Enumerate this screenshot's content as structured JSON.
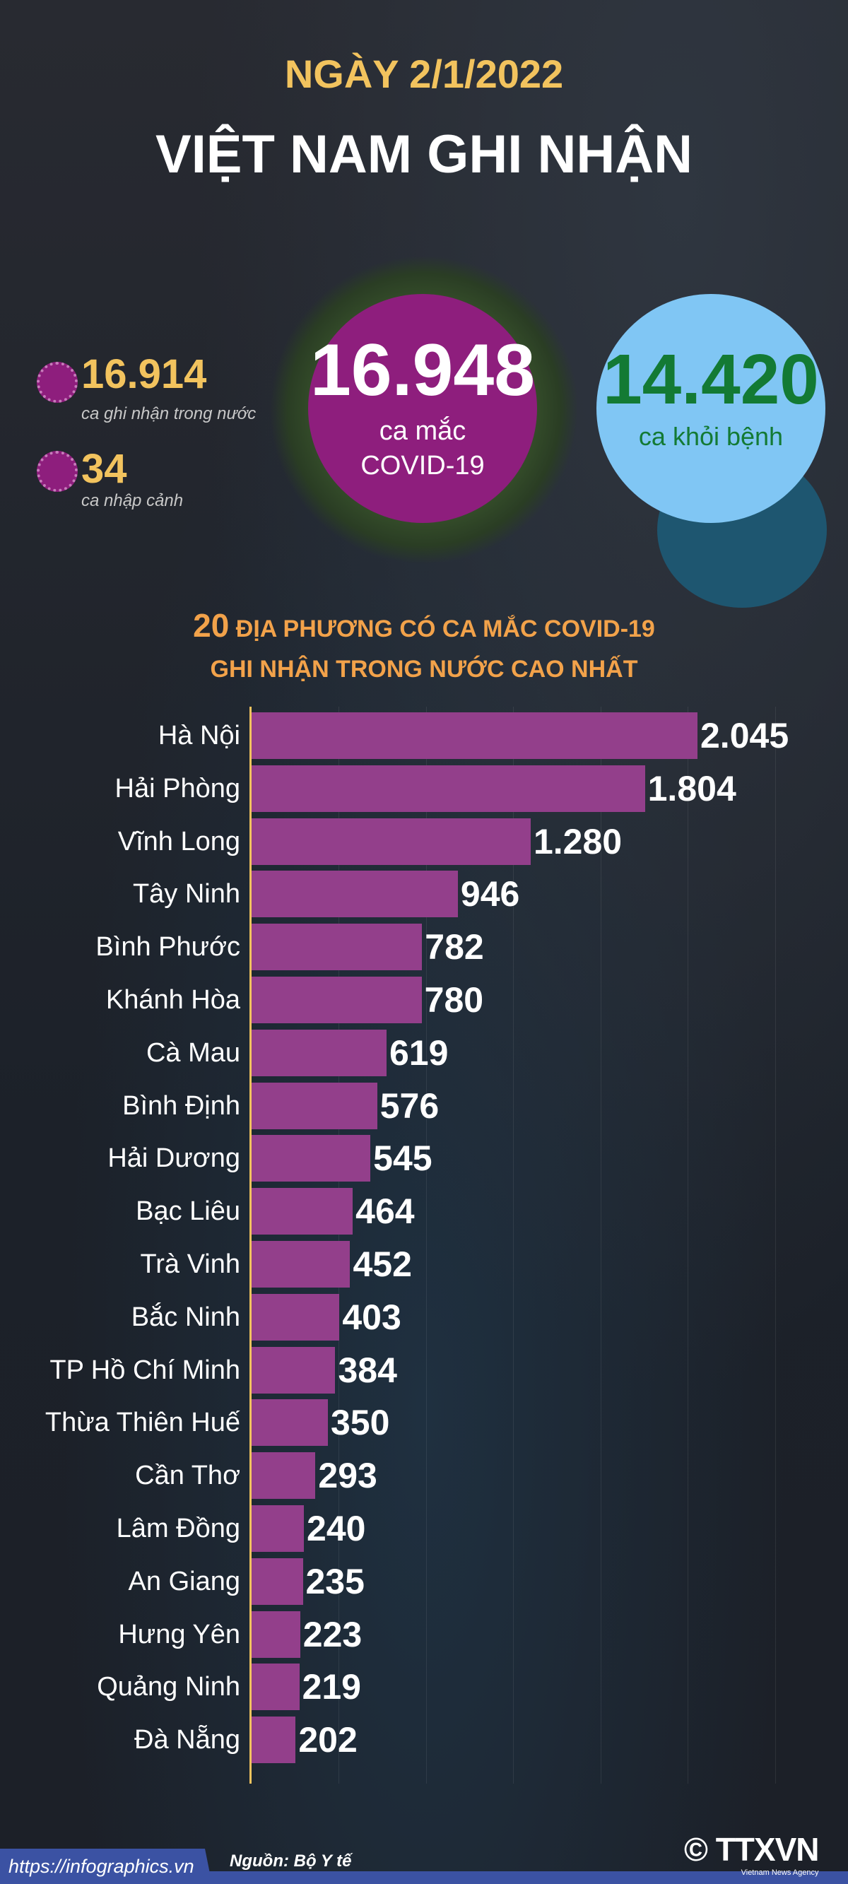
{
  "header": {
    "date": "NGÀY 2/1/2022",
    "title": "VIỆT NAM GHI NHẬN"
  },
  "stats": {
    "domestic": {
      "value": "16.914",
      "label": "ca ghi nhận trong nước"
    },
    "imported": {
      "value": "34",
      "label": "ca nhập cảnh"
    },
    "total": {
      "value": "16.948",
      "label_line1": "ca mắc",
      "label_line2": "COVID-19"
    },
    "recovered": {
      "value": "14.420",
      "label": "ca khỏi bệnh"
    }
  },
  "colors": {
    "bar": "#933f8b",
    "accent": "#f2c35e",
    "total_circle": "#8e1e7d",
    "recovered_circle": "#80c6f4",
    "recovered_text": "#137a34"
  },
  "chart_data": {
    "type": "bar",
    "orientation": "horizontal",
    "title_number": "20",
    "title_line1": " ĐỊA PHƯƠNG CÓ CA MẮC COVID-19",
    "title_line2": "GHI NHẬN TRONG NƯỚC CAO NHẤT",
    "categories": [
      "Hà Nội",
      "Hải Phòng",
      "Vĩnh Long",
      "Tây Ninh",
      "Bình Phước",
      "Khánh Hòa",
      "Cà Mau",
      "Bình Định",
      "Hải Dương",
      "Bạc Liêu",
      "Trà Vinh",
      "Bắc Ninh",
      "TP Hồ Chí Minh",
      "Thừa Thiên Huế",
      "Cần Thơ",
      "Lâm Đồng",
      "An Giang",
      "Hưng Yên",
      "Quảng Ninh",
      "Đà Nẵng"
    ],
    "values": [
      2045,
      1804,
      1280,
      946,
      782,
      780,
      619,
      576,
      545,
      464,
      452,
      403,
      384,
      350,
      293,
      240,
      235,
      223,
      219,
      202
    ],
    "value_labels": [
      "2.045",
      "1.804",
      "1.280",
      "946",
      "782",
      "780",
      "619",
      "576",
      "545",
      "464",
      "452",
      "403",
      "384",
      "350",
      "293",
      "240",
      "235",
      "223",
      "219",
      "202"
    ],
    "xlim": [
      0,
      2800
    ],
    "grid": true
  },
  "footer": {
    "source": "Nguồn: Bộ Y tế",
    "url": "https://infographics.vn",
    "logo": "TTXVN",
    "logo_sub": "Vietnam News Agency",
    "copyright": "©"
  }
}
